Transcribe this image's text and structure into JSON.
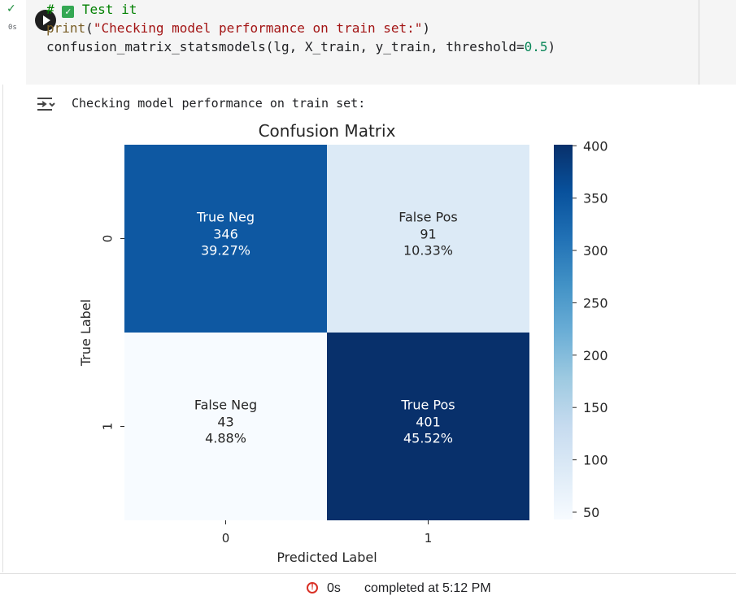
{
  "cell": {
    "exec_time": "0s",
    "code": {
      "line1_hash": "# ",
      "line1_title": "Test it",
      "line2_fn": "print",
      "line2_open": "(",
      "line2_str": "\"Checking model performance on train set:\"",
      "line2_close": ")",
      "line3_fn": "confusion_matrix_statsmodels",
      "line3_args": "(lg, X_train, y_train, threshold=",
      "line3_num": "0.5",
      "line3_close": ")"
    }
  },
  "output": {
    "text": "Checking model performance on train set:"
  },
  "chart_data": {
    "type": "heatmap",
    "title": "Confusion Matrix",
    "xlabel": "Predicted Label",
    "ylabel": "True Label",
    "x_categories": [
      "0",
      "1"
    ],
    "y_categories": [
      "0",
      "1"
    ],
    "cells": [
      {
        "row": 0,
        "col": 0,
        "label": "True Neg",
        "count": "346",
        "percent": "39.27%",
        "value": 346
      },
      {
        "row": 0,
        "col": 1,
        "label": "False Pos",
        "count": "91",
        "percent": "10.33%",
        "value": 91
      },
      {
        "row": 1,
        "col": 0,
        "label": "False Neg",
        "count": "43",
        "percent": "4.88%",
        "value": 43
      },
      {
        "row": 1,
        "col": 1,
        "label": "True Pos",
        "count": "401",
        "percent": "45.52%",
        "value": 401
      }
    ],
    "colorbar": {
      "min": 43,
      "max": 401,
      "ticks": [
        "400",
        "350",
        "300",
        "250",
        "200",
        "150",
        "100",
        "50"
      ],
      "colormap": "Blues",
      "colors": {
        "low": "#f7fbff",
        "high": "#08306b"
      }
    }
  },
  "status": {
    "duration": "0s",
    "completed": "completed at 5:12 PM"
  }
}
